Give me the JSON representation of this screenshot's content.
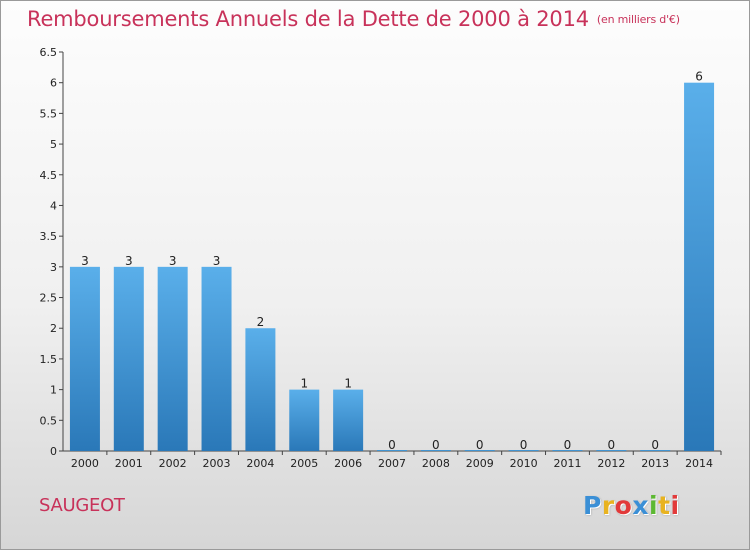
{
  "title": {
    "main": "Remboursements Annuels de la Dette de 2000 à 2014",
    "unit": "(en milliers d'€)"
  },
  "town": "SAUGEOT",
  "logo": {
    "letters": [
      "P",
      "r",
      "o",
      "x",
      "i",
      "t",
      "i"
    ],
    "colors": [
      "#3a8fd6",
      "#e8b320",
      "#e23a3a",
      "#3a8fd6",
      "#5cb832",
      "#e8b320",
      "#e23a3a"
    ]
  },
  "colors": {
    "bar_top": "#5aafea",
    "bar_bottom": "#2a78b8",
    "title": "#c8325a"
  },
  "chart_data": {
    "type": "bar",
    "title": "Remboursements Annuels de la Dette de 2000 à 2014",
    "subtitle": "(en milliers d'€)",
    "xlabel": "",
    "ylabel": "",
    "categories": [
      "2000",
      "2001",
      "2002",
      "2003",
      "2004",
      "2005",
      "2006",
      "2007",
      "2008",
      "2009",
      "2010",
      "2011",
      "2012",
      "2013",
      "2014"
    ],
    "values": [
      3,
      3,
      3,
      3,
      2,
      1,
      1,
      0,
      0,
      0,
      0,
      0,
      0,
      0,
      6
    ],
    "data_labels": [
      "3",
      "3",
      "3",
      "3",
      "2",
      "1",
      "1",
      "0",
      "0",
      "0",
      "0",
      "0",
      "0",
      "0",
      "6"
    ],
    "ylim": [
      0,
      6.5
    ],
    "y_ticks": [
      0,
      0.5,
      1,
      1.5,
      2,
      2.5,
      3,
      3.5,
      4,
      4.5,
      5,
      5.5,
      6,
      6.5
    ],
    "y_tick_labels": [
      "0",
      "0.5",
      "1",
      "1.5",
      "2",
      "2.5",
      "3",
      "3.5",
      "4",
      "4.5",
      "5",
      "5.5",
      "6",
      "6.5"
    ],
    "grid": false,
    "legend": "none"
  }
}
